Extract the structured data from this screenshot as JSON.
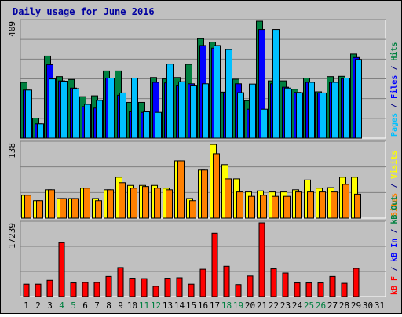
{
  "chart_data": {
    "type": "bar",
    "title": "Daily usage for June 2016",
    "days": [
      "1",
      "2",
      "3",
      "4",
      "5",
      "6",
      "7",
      "8",
      "9",
      "10",
      "11",
      "12",
      "13",
      "14",
      "15",
      "16",
      "17",
      "18",
      "19",
      "20",
      "21",
      "22",
      "23",
      "24",
      "25",
      "26",
      "27",
      "28",
      "29",
      "30",
      "31"
    ],
    "weekend_days": [
      "4",
      "5",
      "11",
      "12",
      "18",
      "19",
      "25",
      "26"
    ],
    "panels": [
      {
        "id": "hits",
        "ymax_label": "409",
        "ymax": 409,
        "side_labels": [
          {
            "text": "Pages",
            "color": "#00c0ff"
          },
          {
            "text": " / ",
            "color": "#000080"
          },
          {
            "text": "Files",
            "color": "#0000ff"
          },
          {
            "text": " / ",
            "color": "#000080"
          },
          {
            "text": "Hits",
            "color": "#008040"
          }
        ],
        "series": [
          {
            "name": "Hits",
            "color": "#008040",
            "values": [
              195,
              70,
              287,
              215,
              205,
              145,
              148,
              235,
              235,
              125,
              125,
              212,
              207,
              212,
              258,
              348,
              336,
              161,
              206,
              131,
              409,
              200,
              200,
              171,
              210,
              162,
              215,
              216,
              294,
              0,
              0
            ]
          },
          {
            "name": "Files",
            "color": "#0000ff",
            "values": [
              168,
              50,
              257,
              200,
              175,
              110,
              105,
              210,
              150,
              92,
              90,
              195,
              193,
              185,
              190,
              324,
              315,
              159,
              190,
              101,
              380,
              190,
              178,
              160,
              195,
              158,
              195,
              208,
              282,
              0,
              0
            ]
          },
          {
            "name": "Pages",
            "color": "#00c0ff",
            "values": [
              168,
              50,
              207,
              199,
              173,
              118,
              132,
              210,
              158,
              210,
              92,
              90,
              259,
              197,
              185,
              190,
              324,
              310,
              159,
              189,
              101,
              380,
              175,
              159,
              195,
              158,
              195,
              210,
              275,
              0,
              0
            ]
          }
        ]
      },
      {
        "id": "visits",
        "ymax_label": "138",
        "ymax": 138,
        "side_labels": [
          {
            "text": "Sites",
            "color": "#ff8000"
          },
          {
            "text": " / ",
            "color": "#000080"
          },
          {
            "text": "Visits",
            "color": "#ffff00"
          }
        ],
        "series": [
          {
            "name": "Visits",
            "color": "#ffff00",
            "values": [
              42,
              32,
              52,
              36,
              36,
              55,
              36,
              52,
              75,
              60,
              60,
              60,
              55,
              105,
              36,
              88,
              135,
              98,
              72,
              48,
              50,
              48,
              48,
              52,
              70,
              55,
              56,
              75,
              75,
              0,
              0
            ]
          },
          {
            "name": "Sites",
            "color": "#ff8000",
            "values": [
              42,
              32,
              52,
              36,
              36,
              55,
              32,
              52,
              65,
              55,
              58,
              55,
              52,
              105,
              32,
              88,
              118,
              72,
              48,
              40,
              42,
              40,
              40,
              48,
              48,
              48,
              48,
              62,
              44,
              0,
              0
            ]
          }
        ]
      },
      {
        "id": "kbytes",
        "ymax_label": "17239",
        "ymax": 17239,
        "side_labels": [
          {
            "text": "kB F",
            "color": "#ff0000"
          },
          {
            "text": " / ",
            "color": "#000080"
          },
          {
            "text": "kB In",
            "color": "#0000ff"
          },
          {
            "text": " / ",
            "color": "#000080"
          },
          {
            "text": "kB Out",
            "color": "#008040"
          }
        ],
        "series": [
          {
            "name": "kB F",
            "color": "#ff0000",
            "values": [
              2900,
              2900,
              3800,
              12600,
              3200,
              3300,
              3300,
              4700,
              6800,
              4300,
              4200,
              2400,
              4300,
              4400,
              2900,
              6400,
              14800,
              7100,
              2800,
              4800,
              17239,
              6500,
              5500,
              3200,
              3200,
              3200,
              4700,
              3100,
              6600,
              0,
              0
            ]
          }
        ]
      }
    ]
  }
}
